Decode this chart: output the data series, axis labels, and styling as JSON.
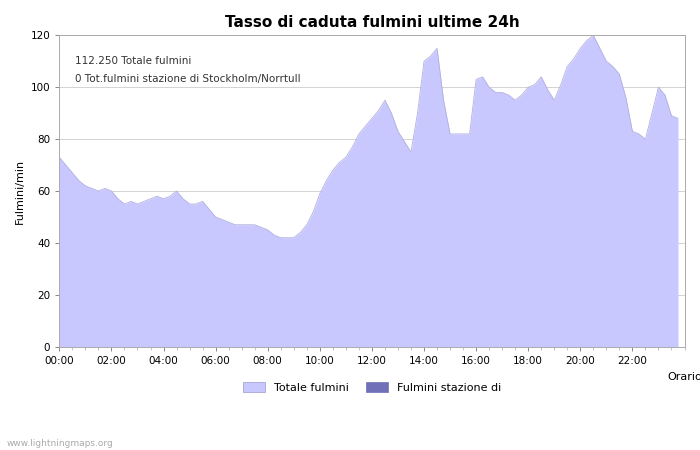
{
  "title": "Tasso di caduta fulmini ultime 24h",
  "xlabel": "Orario",
  "ylabel": "Fulmini/min",
  "annotation_line1": "112.250 Totale fulmini",
  "annotation_line2": "0 Tot.fulmini stazione di Stockholm/Norrtull",
  "watermark": "www.lightningmaps.org",
  "ylim": [
    0,
    120
  ],
  "yticks": [
    0,
    20,
    40,
    60,
    80,
    100,
    120
  ],
  "xtick_labels": [
    "00:00",
    "02:00",
    "04:00",
    "06:00",
    "08:00",
    "10:00",
    "12:00",
    "14:00",
    "16:00",
    "18:00",
    "20:00",
    "22:00"
  ],
  "fill_color": "#c8c8ff",
  "fill_color_station": "#7070b8",
  "edge_color": "#b0b0e0",
  "legend_label1": "Totale fulmini",
  "legend_label2": "Fulmini stazione di",
  "background_color": "#ffffff",
  "grid_color": "#cccccc",
  "title_fontsize": 11,
  "axis_fontsize": 8,
  "tick_fontsize": 7.5,
  "hours": [
    0.0,
    0.25,
    0.5,
    0.75,
    1.0,
    1.25,
    1.5,
    1.75,
    2.0,
    2.25,
    2.5,
    2.75,
    3.0,
    3.25,
    3.5,
    3.75,
    4.0,
    4.25,
    4.5,
    4.75,
    5.0,
    5.25,
    5.5,
    5.75,
    6.0,
    6.25,
    6.5,
    6.75,
    7.0,
    7.25,
    7.5,
    7.75,
    8.0,
    8.25,
    8.5,
    8.75,
    9.0,
    9.25,
    9.5,
    9.75,
    10.0,
    10.25,
    10.5,
    10.75,
    11.0,
    11.25,
    11.5,
    11.75,
    12.0,
    12.25,
    12.5,
    12.75,
    13.0,
    13.25,
    13.5,
    13.75,
    14.0,
    14.25,
    14.5,
    14.75,
    15.0,
    15.25,
    15.5,
    15.75,
    16.0,
    16.25,
    16.5,
    16.75,
    17.0,
    17.25,
    17.5,
    17.75,
    18.0,
    18.25,
    18.5,
    18.75,
    19.0,
    19.25,
    19.5,
    19.75,
    20.0,
    20.25,
    20.5,
    20.75,
    21.0,
    21.25,
    21.5,
    21.75,
    22.0,
    22.25,
    22.5,
    22.75,
    23.0,
    23.25,
    23.5,
    23.75
  ],
  "values": [
    73,
    70,
    67,
    64,
    62,
    61,
    60,
    61,
    60,
    57,
    55,
    56,
    55,
    56,
    57,
    58,
    57,
    58,
    60,
    57,
    55,
    55,
    56,
    53,
    50,
    49,
    48,
    47,
    47,
    47,
    47,
    46,
    45,
    43,
    42,
    42,
    42,
    44,
    47,
    52,
    59,
    64,
    68,
    71,
    73,
    77,
    82,
    85,
    88,
    91,
    95,
    90,
    83,
    79,
    75,
    90,
    110,
    112,
    115,
    95,
    82,
    82,
    82,
    82,
    103,
    104,
    100,
    98,
    98,
    97,
    95,
    97,
    100,
    101,
    104,
    99,
    95,
    101,
    108,
    111,
    115,
    118,
    120,
    115,
    110,
    108,
    105,
    96,
    83,
    82,
    80,
    90,
    100,
    97,
    89,
    88
  ]
}
